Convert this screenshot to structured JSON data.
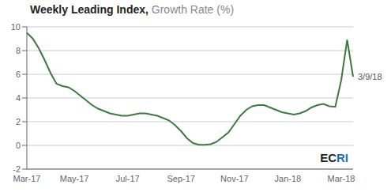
{
  "chart_data": {
    "type": "line",
    "title": "Weekly Leading Index,",
    "subtitle": "Growth Rate (%)",
    "color": "#3d7a3d",
    "ylim": [
      -2,
      10
    ],
    "yticks": [
      -2,
      0,
      2,
      4,
      6,
      8,
      10
    ],
    "grid": true,
    "annotations": [
      {
        "text": "3/9/18"
      },
      {
        "text": "EC",
        "color": "#1f1f1f"
      },
      {
        "text": "RI",
        "color": "#1a6fa8"
      }
    ],
    "categories": [
      "Mar-17",
      null,
      null,
      null,
      null,
      null,
      null,
      null,
      "May-17",
      null,
      null,
      null,
      null,
      null,
      null,
      null,
      null,
      "Jul-17",
      null,
      null,
      null,
      null,
      null,
      null,
      null,
      null,
      "Sep-17",
      null,
      null,
      null,
      null,
      null,
      null,
      null,
      null,
      "Nov-17",
      null,
      null,
      null,
      null,
      null,
      null,
      null,
      null,
      "Jan-18",
      null,
      null,
      null,
      null,
      null,
      null,
      null,
      null,
      "Mar-18",
      null,
      null
    ],
    "values": [
      9.5,
      9.0,
      8.2,
      7.2,
      6.1,
      5.2,
      5.0,
      4.9,
      4.6,
      4.2,
      3.8,
      3.4,
      3.1,
      2.9,
      2.7,
      2.6,
      2.5,
      2.5,
      2.6,
      2.7,
      2.7,
      2.6,
      2.5,
      2.3,
      2.1,
      1.7,
      1.2,
      0.6,
      0.2,
      0.05,
      0.05,
      0.1,
      0.3,
      0.7,
      1.1,
      1.8,
      2.5,
      3.0,
      3.3,
      3.4,
      3.4,
      3.2,
      3.0,
      2.8,
      2.7,
      2.6,
      2.7,
      2.9,
      3.2,
      3.4,
      3.5,
      3.3,
      3.25,
      5.5,
      8.9,
      5.8
    ]
  }
}
